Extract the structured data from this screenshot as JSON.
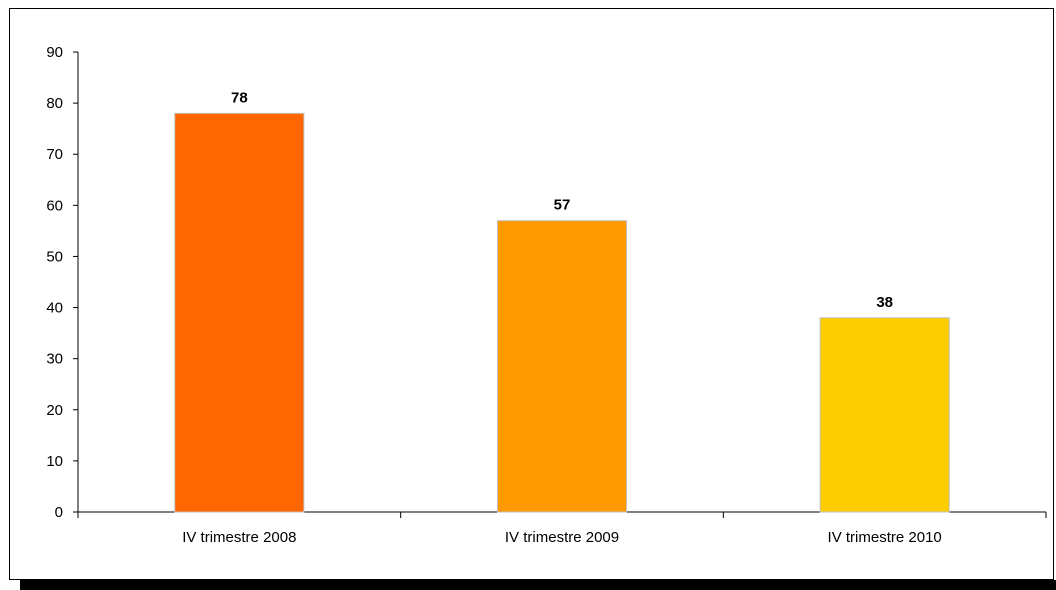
{
  "chart_data": {
    "type": "bar",
    "title": "",
    "xlabel": "",
    "ylabel": "",
    "categories": [
      "IV trimestre 2008",
      "IV trimestre 2009",
      "IV trimestre 2010"
    ],
    "values": [
      78,
      57,
      38
    ],
    "data_labels": [
      "78",
      "57",
      "38"
    ],
    "bar_colors": [
      "#FF6600",
      "#FF9900",
      "#FFCC00"
    ],
    "ylim": [
      0,
      90
    ],
    "yticks": [
      0,
      10,
      20,
      30,
      40,
      50,
      60,
      70,
      80,
      90
    ],
    "grid": false,
    "legend": "none"
  }
}
